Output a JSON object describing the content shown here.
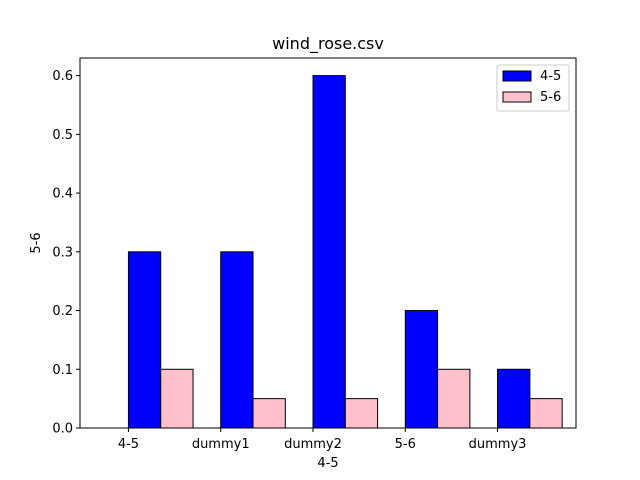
{
  "chart_data": {
    "type": "bar",
    "title": "wind_rose.csv",
    "xlabel": "4-5",
    "ylabel": "5-6",
    "categories": [
      "4-5",
      "dummy1",
      "dummy2",
      "5-6",
      "dummy3"
    ],
    "series": [
      {
        "name": "4-5",
        "values": [
          0.3,
          0.3,
          0.6,
          0.2,
          0.1
        ],
        "color": "#0000ff"
      },
      {
        "name": "5-6",
        "values": [
          0.1,
          0.05,
          0.05,
          0.1,
          0.05
        ],
        "color": "#ffc0cb"
      }
    ],
    "ylim": [
      0,
      0.63
    ],
    "yticks": [
      "0.0",
      "0.1",
      "0.2",
      "0.3",
      "0.4",
      "0.5",
      "0.6"
    ],
    "legend_position": "top-right",
    "grid": false
  }
}
